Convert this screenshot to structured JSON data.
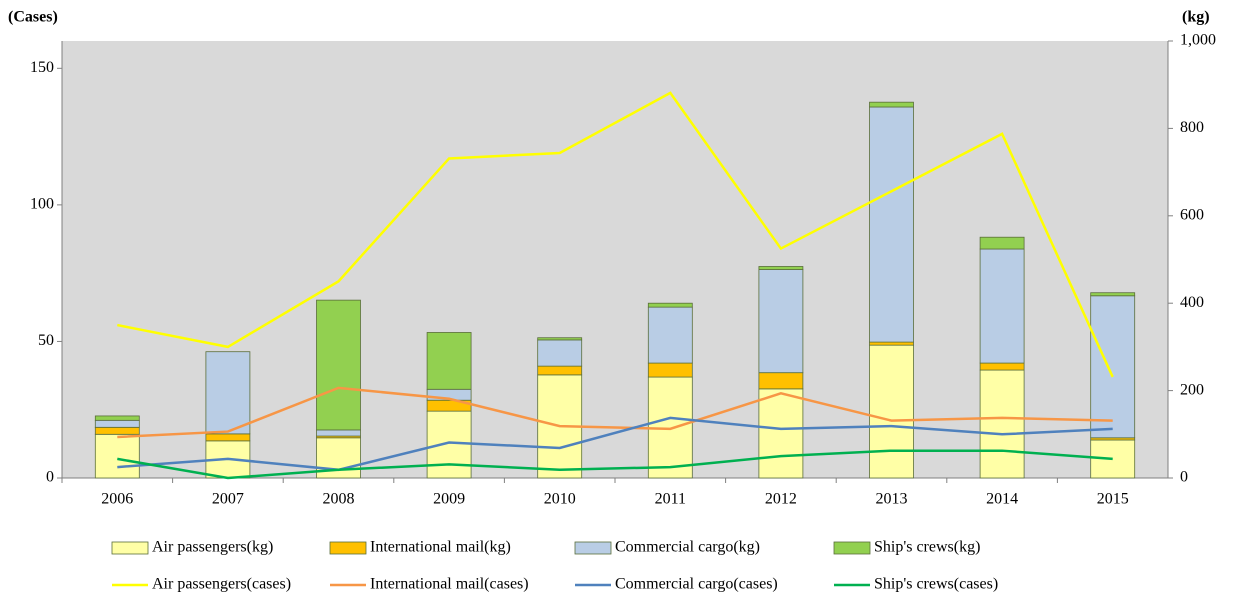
{
  "chart_data": {
    "type": "combo",
    "y_label": "(Cases)",
    "y2_label": "(kg)",
    "categories": [
      "2006",
      "2007",
      "2008",
      "2009",
      "2010",
      "2011",
      "2012",
      "2013",
      "2014",
      "2015"
    ],
    "ylim": [
      0,
      160
    ],
    "yticks": [
      0,
      50,
      100,
      150
    ],
    "y2lim": [
      0,
      1000
    ],
    "y2ticks": [
      0,
      200,
      400,
      600,
      800,
      {
        "value": 1000,
        "label": "1,000"
      }
    ],
    "series": [
      {
        "name": "Air passengers(kg)",
        "type": "bar",
        "axis": "y2",
        "color": "#ffffa6",
        "values": [
          100,
          85,
          92,
          153,
          236,
          231,
          204,
          304,
          247,
          87
        ]
      },
      {
        "name": "International mail(kg)",
        "type": "bar",
        "axis": "y2",
        "color": "#ffc000",
        "values": [
          16,
          16,
          4,
          25,
          20,
          32,
          37,
          7,
          16,
          5
        ]
      },
      {
        "name": "Commercial cargo(kg)",
        "type": "bar",
        "axis": "y2",
        "color": "#b9cde5",
        "values": [
          16,
          188,
          14,
          25,
          60,
          128,
          236,
          538,
          261,
          325
        ]
      },
      {
        "name": "Ship's crews(kg)",
        "type": "bar",
        "axis": "y2",
        "color": "#92d050",
        "values": [
          10,
          0,
          297,
          130,
          5,
          9,
          7,
          11,
          27,
          7
        ]
      },
      {
        "name": "Air passengers(cases)",
        "type": "line",
        "color": "#ffff00",
        "values": [
          56,
          48,
          72,
          117,
          119,
          141,
          84,
          105,
          126,
          37
        ]
      },
      {
        "name": "International mail(cases)",
        "type": "line",
        "color": "#f79646",
        "values": [
          15,
          17,
          33,
          29,
          19,
          18,
          31,
          21,
          22,
          21
        ]
      },
      {
        "name": "Commercial cargo(cases)",
        "type": "line",
        "color": "#4f81bd",
        "values": [
          4,
          7,
          3,
          13,
          11,
          22,
          18,
          19,
          16,
          18
        ]
      },
      {
        "name": "Ship's crews(cases)",
        "type": "line",
        "color": "#00b050",
        "values": [
          7,
          0,
          3,
          5,
          3,
          4,
          8,
          10,
          10,
          7
        ]
      }
    ]
  }
}
